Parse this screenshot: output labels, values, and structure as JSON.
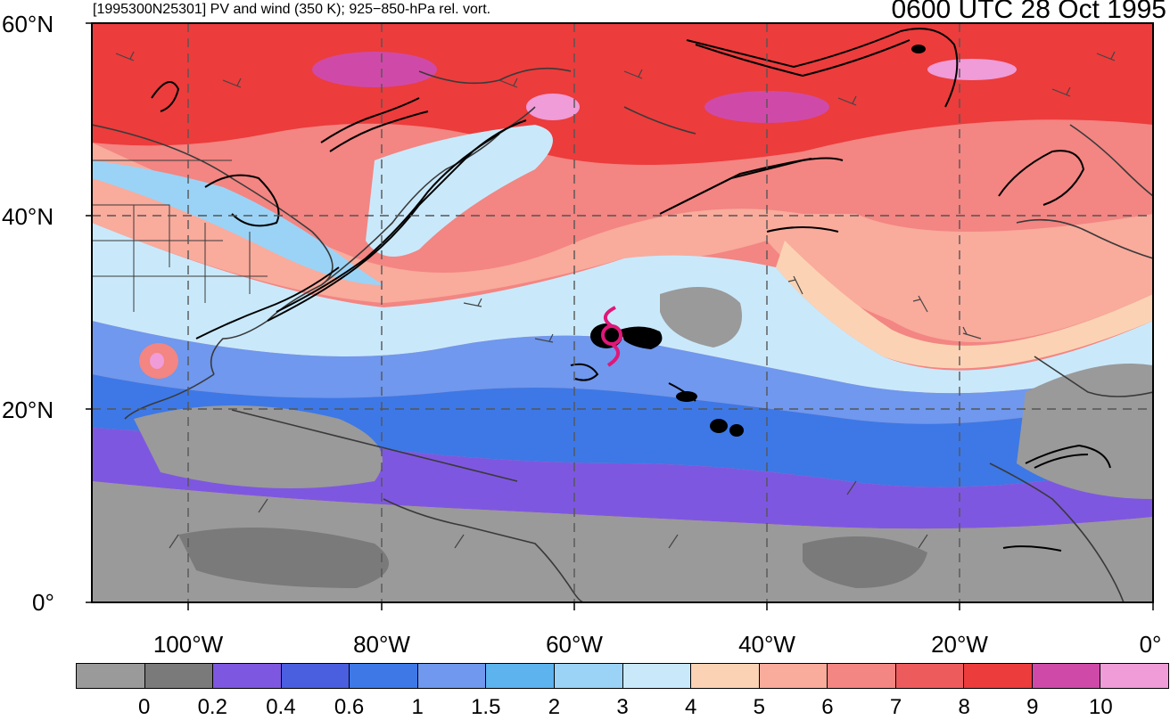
{
  "header": {
    "left": "[1995300N25301] PV and wind (350 K); 925−850-hPa rel. vort.",
    "right": "0600 UTC 28 Oct 1995"
  },
  "lat_labels": [
    "60°N",
    "40°N",
    "20°N",
    "0°"
  ],
  "lon_labels": [
    "100°W",
    "80°W",
    "60°W",
    "40°W",
    "20°W",
    "0°"
  ],
  "colorbar": {
    "colors": [
      "#9a9a9a",
      "#7a7a7a",
      "#7e57e0",
      "#4a5ee0",
      "#3d78e6",
      "#6f98ee",
      "#5cb3ee",
      "#9bd3f6",
      "#c9e9fb",
      "#fbd3b4",
      "#f9ab9c",
      "#f38582",
      "#ee5b5d",
      "#ec3c3c",
      "#cf4aa8",
      "#ef9cd8"
    ],
    "labels": [
      "0",
      "0.2",
      "0.4",
      "0.6",
      "1",
      "1.5",
      "2",
      "3",
      "4",
      "5",
      "6",
      "7",
      "8",
      "9",
      "10"
    ]
  },
  "storm_symbol": "hurricane-symbol"
}
